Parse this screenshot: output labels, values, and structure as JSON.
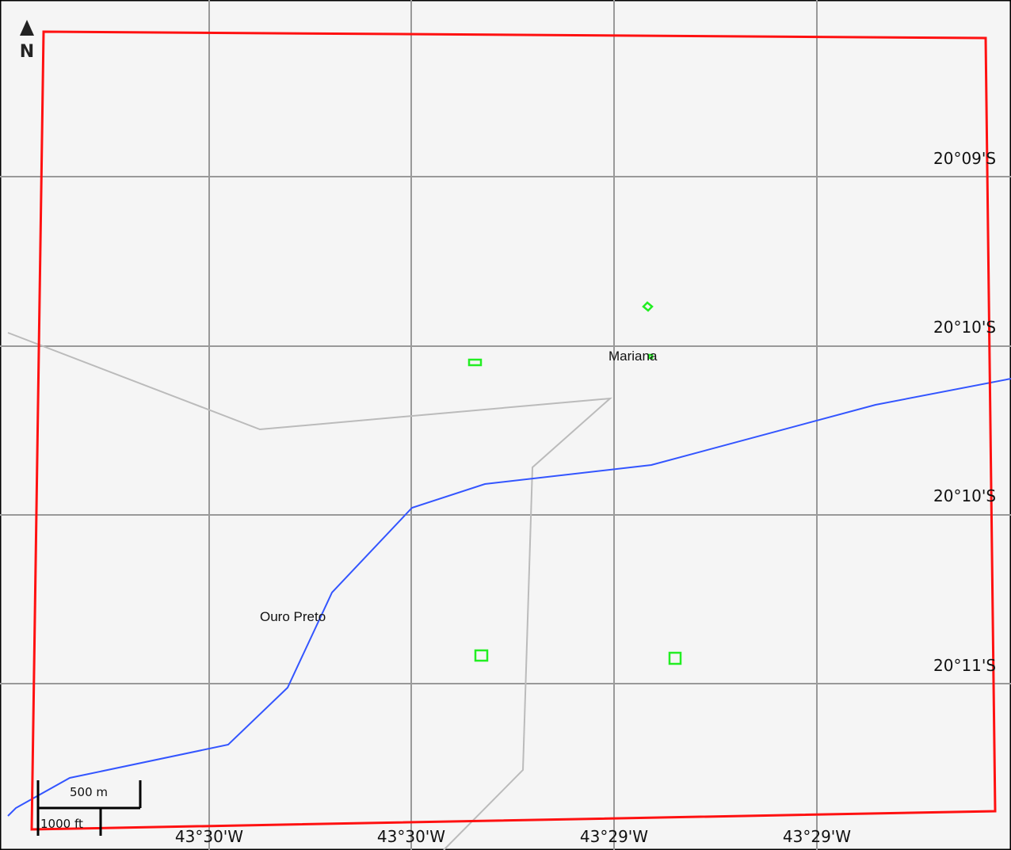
{
  "north": "N",
  "latitude_labels": [
    "20°09'S",
    "20°10'S",
    "20°10'S",
    "20°11'S"
  ],
  "longitude_labels": [
    "43°30'W",
    "43°30'W",
    "43°29'W",
    "43°29'W"
  ],
  "places": [
    "Mariana",
    "Ouro Preto"
  ],
  "scale_bar": {
    "metric": "500 m",
    "imperial": "1000 ft"
  }
}
